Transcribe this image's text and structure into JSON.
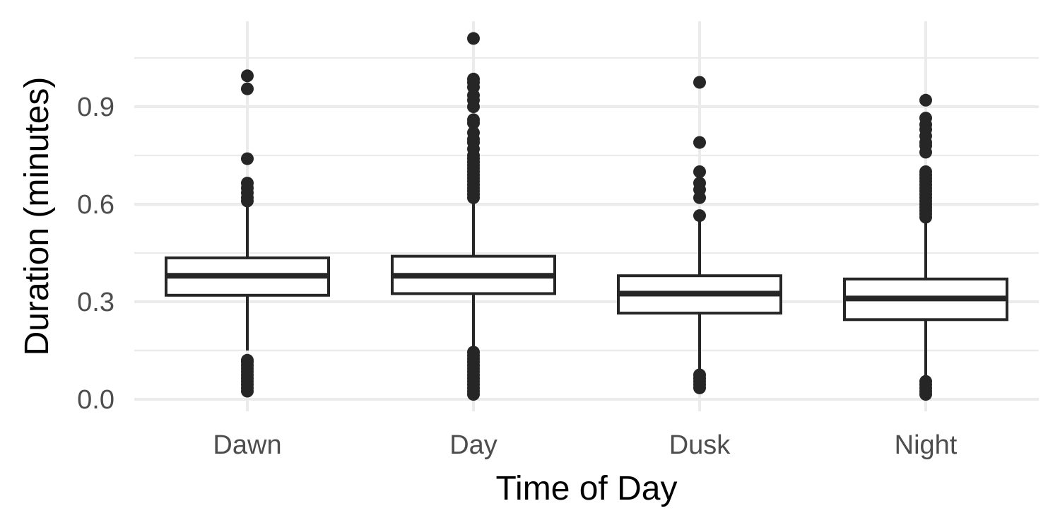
{
  "chart_data": {
    "type": "boxplot",
    "xlabel": "Time of Day",
    "ylabel": "Duration (minutes)",
    "ylim": [
      -0.02,
      1.125
    ],
    "yticks": [
      0.0,
      0.3,
      0.6,
      0.9
    ],
    "ytick_labels": [
      "0.0",
      "0.3",
      "0.6",
      "0.9"
    ],
    "y_minor_ticks": [
      0.15,
      0.45,
      0.75,
      1.05
    ],
    "grid": true,
    "legend": "none",
    "categories": [
      "Dawn",
      "Day",
      "Dusk",
      "Night"
    ],
    "boxes": [
      {
        "category": "Dawn",
        "q1": 0.32,
        "median": 0.38,
        "q3": 0.435,
        "whisker_low": 0.15,
        "whisker_high": 0.6,
        "outliers": [
          0.025,
          0.035,
          0.045,
          0.055,
          0.065,
          0.075,
          0.085,
          0.095,
          0.105,
          0.115,
          0.12,
          0.61,
          0.62,
          0.635,
          0.65,
          0.665,
          0.74,
          0.955,
          0.995
        ]
      },
      {
        "category": "Day",
        "q1": 0.325,
        "median": 0.38,
        "q3": 0.44,
        "whisker_low": 0.155,
        "whisker_high": 0.61,
        "outliers": [
          0.015,
          0.025,
          0.035,
          0.045,
          0.055,
          0.065,
          0.075,
          0.085,
          0.095,
          0.105,
          0.115,
          0.125,
          0.135,
          0.145,
          0.62,
          0.63,
          0.64,
          0.65,
          0.66,
          0.67,
          0.68,
          0.69,
          0.7,
          0.71,
          0.72,
          0.73,
          0.74,
          0.75,
          0.77,
          0.79,
          0.8,
          0.82,
          0.85,
          0.86,
          0.9,
          0.92,
          0.935,
          0.96,
          0.975,
          0.985,
          1.11
        ]
      },
      {
        "category": "Dusk",
        "q1": 0.265,
        "median": 0.325,
        "q3": 0.38,
        "whisker_low": 0.09,
        "whisker_high": 0.55,
        "outliers": [
          0.035,
          0.045,
          0.055,
          0.065,
          0.075,
          0.565,
          0.62,
          0.645,
          0.665,
          0.7,
          0.79,
          0.975
        ]
      },
      {
        "category": "Night",
        "q1": 0.245,
        "median": 0.31,
        "q3": 0.37,
        "whisker_low": 0.07,
        "whisker_high": 0.55,
        "outliers": [
          0.015,
          0.025,
          0.035,
          0.045,
          0.055,
          0.56,
          0.57,
          0.58,
          0.59,
          0.6,
          0.61,
          0.62,
          0.63,
          0.64,
          0.65,
          0.66,
          0.67,
          0.68,
          0.69,
          0.7,
          0.76,
          0.78,
          0.79,
          0.81,
          0.83,
          0.845,
          0.865,
          0.92
        ]
      }
    ]
  }
}
